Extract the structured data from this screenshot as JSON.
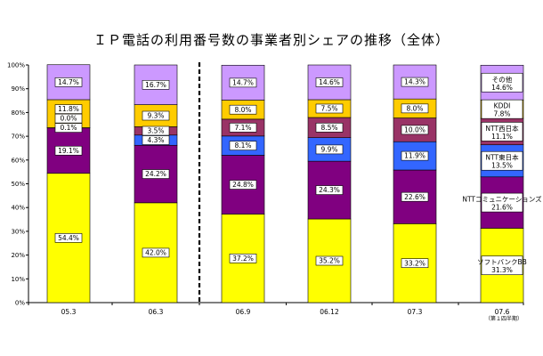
{
  "chart_data": {
    "type": "bar",
    "stacked": true,
    "title": "ＩＰ電話の利用番号数の事業者別シェアの推移（全体）",
    "categories": [
      "05.3",
      "06.3",
      "06.9",
      "06.12",
      "07.3",
      "07.6"
    ],
    "category_subtitles": [
      "",
      "",
      "",
      "",
      "",
      "（第１四半期）"
    ],
    "ylim": [
      0,
      100
    ],
    "yticks": [
      "0%",
      "10%",
      "20%",
      "30%",
      "40%",
      "50%",
      "60%",
      "70%",
      "80%",
      "90%",
      "100%"
    ],
    "grid": false,
    "dashed_divider_after_category": "06.3",
    "series": [
      {
        "name": "ソフトバンクBB",
        "color": "#ffff00",
        "values": [
          54.4,
          42.0,
          37.2,
          35.2,
          33.2,
          31.3
        ],
        "labels": [
          "54.4%",
          "42.0%",
          "37.2%",
          "35.2%",
          "33.2%",
          "31.3%"
        ]
      },
      {
        "name": "NTTコミュニケーションズ",
        "color": "#800080",
        "values": [
          19.1,
          24.2,
          24.8,
          24.3,
          22.6,
          21.6
        ],
        "labels": [
          "19.1%",
          "24.2%",
          "24.8%",
          "24.3%",
          "22.6%",
          "21.6%"
        ]
      },
      {
        "name": "NTT東日本",
        "color": "#3366ff",
        "values": [
          0.1,
          4.3,
          8.1,
          9.9,
          11.9,
          13.5
        ],
        "labels": [
          "0.1%",
          "4.3%",
          "8.1%",
          "9.9%",
          "11.9%",
          "13.5%"
        ]
      },
      {
        "name": "NTT西日本",
        "color": "#993366",
        "values": [
          0.0,
          3.5,
          7.1,
          8.5,
          10.0,
          11.1
        ],
        "labels": [
          "0.0%",
          "3.5%",
          "7.1%",
          "8.5%",
          "10.0%",
          "11.1%"
        ]
      },
      {
        "name": "KDDI",
        "color": "#ffcc00",
        "values": [
          11.8,
          9.3,
          8.0,
          7.5,
          8.0,
          7.8
        ],
        "labels": [
          "11.8%",
          "9.3%",
          "8.0%",
          "7.5%",
          "8.0%",
          "7.8%"
        ]
      },
      {
        "name": "その他",
        "color": "#cc99ff",
        "values": [
          14.7,
          16.7,
          14.7,
          14.6,
          14.3,
          14.6
        ],
        "labels": [
          "14.7%",
          "16.7%",
          "14.7%",
          "14.6%",
          "14.3%",
          "14.6%"
        ]
      }
    ]
  }
}
